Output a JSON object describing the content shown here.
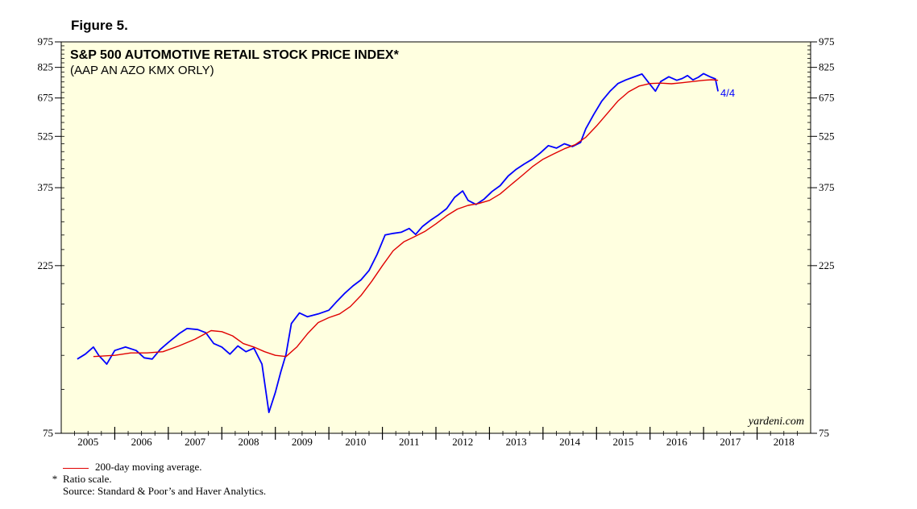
{
  "figure_label": "Figure 5.",
  "notes": {
    "legend_ma": "200-day moving average.",
    "star": "*",
    "ratio": "Ratio scale.",
    "source": "Source: Standard & Poor’s and Haver Analytics."
  },
  "chart_data": {
    "type": "line",
    "title": "S&P 500 AUTOMOTIVE RETAIL STOCK PRICE INDEX*",
    "subtitle": "(AAP AN AZO KMX ORLY)",
    "brand": "yardeni.com",
    "annotation": "4/4",
    "y_scale": "log",
    "ylim": [
      75,
      975
    ],
    "y_ticks": [
      "975",
      "825",
      "675",
      "525",
      "375",
      "225",
      "75"
    ],
    "x_ticks": [
      "2005",
      "2006",
      "2007",
      "2008",
      "2009",
      "2010",
      "2011",
      "2012",
      "2013",
      "2014",
      "2015",
      "2016",
      "2017",
      "2018"
    ],
    "xlim": [
      2005.0,
      2019.0
    ],
    "grid": false,
    "background": "#ffffe0",
    "series": [
      {
        "color": "#0000ff",
        "points": [
          [
            2005.3,
            122
          ],
          [
            2005.45,
            126
          ],
          [
            2005.6,
            132
          ],
          [
            2005.7,
            125
          ],
          [
            2005.85,
            118
          ],
          [
            2006.0,
            129
          ],
          [
            2006.2,
            132
          ],
          [
            2006.4,
            129
          ],
          [
            2006.55,
            123
          ],
          [
            2006.7,
            122
          ],
          [
            2006.85,
            130
          ],
          [
            2007.0,
            136
          ],
          [
            2007.2,
            144
          ],
          [
            2007.35,
            149
          ],
          [
            2007.55,
            148
          ],
          [
            2007.7,
            145
          ],
          [
            2007.85,
            135
          ],
          [
            2008.0,
            132
          ],
          [
            2008.15,
            126
          ],
          [
            2008.3,
            133
          ],
          [
            2008.45,
            128
          ],
          [
            2008.6,
            131
          ],
          [
            2008.75,
            118
          ],
          [
            2008.88,
            86
          ],
          [
            2009.0,
            98
          ],
          [
            2009.1,
            112
          ],
          [
            2009.2,
            126
          ],
          [
            2009.3,
            154
          ],
          [
            2009.45,
            165
          ],
          [
            2009.6,
            161
          ],
          [
            2009.8,
            164
          ],
          [
            2010.0,
            168
          ],
          [
            2010.15,
            178
          ],
          [
            2010.3,
            188
          ],
          [
            2010.45,
            197
          ],
          [
            2010.6,
            205
          ],
          [
            2010.75,
            218
          ],
          [
            2010.9,
            242
          ],
          [
            2011.05,
            275
          ],
          [
            2011.2,
            278
          ],
          [
            2011.35,
            280
          ],
          [
            2011.5,
            287
          ],
          [
            2011.62,
            276
          ],
          [
            2011.75,
            291
          ],
          [
            2011.9,
            303
          ],
          [
            2012.05,
            314
          ],
          [
            2012.2,
            327
          ],
          [
            2012.35,
            352
          ],
          [
            2012.5,
            367
          ],
          [
            2012.6,
            345
          ],
          [
            2012.75,
            336
          ],
          [
            2012.9,
            348
          ],
          [
            2013.05,
            366
          ],
          [
            2013.2,
            380
          ],
          [
            2013.35,
            405
          ],
          [
            2013.5,
            423
          ],
          [
            2013.65,
            438
          ],
          [
            2013.8,
            452
          ],
          [
            2013.95,
            471
          ],
          [
            2014.1,
            494
          ],
          [
            2014.25,
            486
          ],
          [
            2014.4,
            500
          ],
          [
            2014.55,
            491
          ],
          [
            2014.7,
            504
          ],
          [
            2014.8,
            552
          ],
          [
            2014.95,
            607
          ],
          [
            2015.1,
            662
          ],
          [
            2015.25,
            705
          ],
          [
            2015.4,
            742
          ],
          [
            2015.55,
            760
          ],
          [
            2015.7,
            775
          ],
          [
            2015.85,
            790
          ],
          [
            2016.0,
            738
          ],
          [
            2016.1,
            706
          ],
          [
            2016.2,
            752
          ],
          [
            2016.35,
            776
          ],
          [
            2016.5,
            758
          ],
          [
            2016.6,
            767
          ],
          [
            2016.7,
            782
          ],
          [
            2016.8,
            760
          ],
          [
            2016.9,
            773
          ],
          [
            2017.0,
            792
          ],
          [
            2017.12,
            776
          ],
          [
            2017.22,
            765
          ],
          [
            2017.27,
            705
          ]
        ]
      },
      {
        "color": "#e00000",
        "points": [
          [
            2005.6,
            124
          ],
          [
            2006.0,
            125
          ],
          [
            2006.3,
            127
          ],
          [
            2006.6,
            127
          ],
          [
            2006.9,
            128
          ],
          [
            2007.2,
            133
          ],
          [
            2007.5,
            139
          ],
          [
            2007.8,
            147
          ],
          [
            2008.0,
            146
          ],
          [
            2008.2,
            142
          ],
          [
            2008.4,
            135
          ],
          [
            2008.6,
            132
          ],
          [
            2008.8,
            128
          ],
          [
            2009.0,
            125
          ],
          [
            2009.2,
            124
          ],
          [
            2009.4,
            132
          ],
          [
            2009.6,
            144
          ],
          [
            2009.8,
            155
          ],
          [
            2010.0,
            160
          ],
          [
            2010.2,
            164
          ],
          [
            2010.4,
            172
          ],
          [
            2010.6,
            185
          ],
          [
            2010.8,
            203
          ],
          [
            2011.0,
            225
          ],
          [
            2011.2,
            248
          ],
          [
            2011.4,
            263
          ],
          [
            2011.6,
            272
          ],
          [
            2011.8,
            282
          ],
          [
            2012.0,
            296
          ],
          [
            2012.2,
            312
          ],
          [
            2012.4,
            326
          ],
          [
            2012.6,
            334
          ],
          [
            2012.8,
            338
          ],
          [
            2013.0,
            345
          ],
          [
            2013.2,
            360
          ],
          [
            2013.4,
            382
          ],
          [
            2013.6,
            405
          ],
          [
            2013.8,
            430
          ],
          [
            2014.0,
            452
          ],
          [
            2014.2,
            468
          ],
          [
            2014.4,
            484
          ],
          [
            2014.6,
            497
          ],
          [
            2014.8,
            522
          ],
          [
            2015.0,
            562
          ],
          [
            2015.2,
            610
          ],
          [
            2015.4,
            662
          ],
          [
            2015.6,
            703
          ],
          [
            2015.8,
            730
          ],
          [
            2016.0,
            742
          ],
          [
            2016.2,
            744
          ],
          [
            2016.4,
            741
          ],
          [
            2016.6,
            746
          ],
          [
            2016.8,
            752
          ],
          [
            2017.0,
            758
          ],
          [
            2017.15,
            761
          ],
          [
            2017.27,
            758
          ]
        ]
      }
    ]
  }
}
